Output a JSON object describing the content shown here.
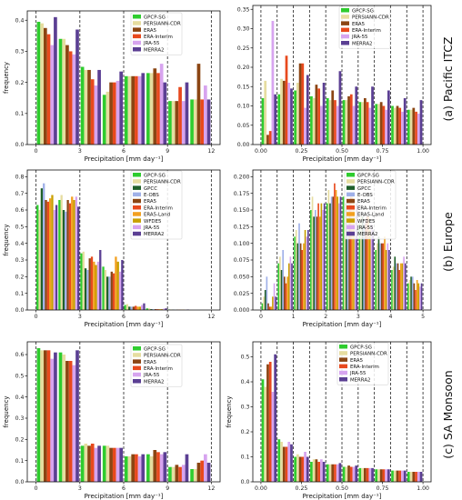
{
  "colors": {
    "GPCP-SG": "#2ecc2e",
    "PERSIANN-CDR": "#e6dda0",
    "GPCC": "#1f5f2a",
    "E-OBS": "#9fb0e8",
    "ERA5": "#8b4513",
    "ERA-Interim": "#e8491d",
    "ERA5-Land": "#f2a020",
    "WFDE5": "#c9a000",
    "JRA-55": "#d7a4ef",
    "MERRA2": "#5b3f93"
  },
  "row_labels": [
    "(a) Pacific ITCZ",
    "(b) Europe",
    "(c) SA Monsoon"
  ],
  "chart_data": [
    {
      "id": "a-left",
      "type": "bar",
      "xlabel": "Precipitation [mm day⁻¹]",
      "ylabel": "frequency",
      "xlim": [
        -0.6,
        12.6
      ],
      "ylim": [
        0,
        0.43
      ],
      "xticks": [
        0,
        3,
        6,
        9,
        12
      ],
      "xtick_labels": [
        "0",
        "3",
        "6",
        "9",
        "12"
      ],
      "yticks": [
        0,
        0.1,
        0.2,
        0.3,
        0.4
      ],
      "ytick_labels": [
        "0.0",
        "0.1",
        "0.2",
        "0.3",
        "0.4"
      ],
      "bin_width": 1.5,
      "group_frac": 0.92,
      "bin_starts": [
        0,
        1.5,
        3,
        4.5,
        6,
        7.5,
        9,
        10.5
      ],
      "vlines": [
        0,
        3,
        6,
        9,
        12
      ],
      "series": [
        {
          "name": "GPCP-SG",
          "values": [
            0.395,
            0.34,
            0.25,
            0.16,
            0.22,
            0.23,
            0.14,
            0.145
          ]
        },
        {
          "name": "PERSIANN-CDR",
          "values": [
            0.39,
            0.34,
            0.24,
            0.17,
            0.22,
            0.23,
            0.14,
            0.145
          ]
        },
        {
          "name": "ERA5",
          "values": [
            0.375,
            0.32,
            0.24,
            0.2,
            0.22,
            0.245,
            0.14,
            0.26
          ]
        },
        {
          "name": "ERA-Interim",
          "values": [
            0.355,
            0.3,
            0.21,
            0.2,
            0.22,
            0.23,
            0.185,
            0.145
          ]
        },
        {
          "name": "JRA-55",
          "values": [
            0.32,
            0.29,
            0.19,
            0.205,
            0.22,
            0.26,
            0.14,
            0.19
          ]
        },
        {
          "name": "MERRA2",
          "values": [
            0.41,
            0.37,
            0.24,
            0.235,
            0.23,
            0.2,
            0.2,
            0.145
          ]
        }
      ]
    },
    {
      "id": "a-right",
      "type": "bar",
      "xlabel": "Precipitation [mm day⁻¹]",
      "ylabel": "",
      "xlim": [
        -0.05,
        1.05
      ],
      "ylim": [
        0,
        0.36
      ],
      "xticks": [
        0,
        0.25,
        0.5,
        0.75,
        1.0
      ],
      "xtick_labels": [
        "0.00",
        "0.25",
        "0.50",
        "0.75",
        "1.00"
      ],
      "yticks": [
        0,
        0.05,
        0.1,
        0.15,
        0.2,
        0.25,
        0.3,
        0.35
      ],
      "ytick_labels": [
        "0.00",
        "0.05",
        "0.10",
        "0.15",
        "0.20",
        "0.25",
        "0.30",
        "0.35"
      ],
      "bin_width": 0.1,
      "group_frac": 0.92,
      "bin_starts": [
        0,
        0.1,
        0.2,
        0.3,
        0.4,
        0.5,
        0.6,
        0.7,
        0.8,
        0.9
      ],
      "vlines": [
        0,
        0.1,
        0.2,
        0.3,
        0.4,
        0.5,
        0.6,
        0.7,
        0.8,
        0.9,
        1.0
      ],
      "series": [
        {
          "name": "GPCP-SG",
          "values": [
            0.12,
            0.13,
            0.14,
            0.125,
            0.12,
            0.115,
            0.11,
            0.105,
            0.1,
            0.09
          ]
        },
        {
          "name": "PERSIANN-CDR",
          "values": [
            0.165,
            0.17,
            0.16,
            0.12,
            0.115,
            0.115,
            0.11,
            0.105,
            0.095,
            0.09
          ]
        },
        {
          "name": "ERA5",
          "values": [
            0.025,
            0.165,
            0.21,
            0.155,
            0.14,
            0.125,
            0.12,
            0.11,
            0.1,
            0.095
          ]
        },
        {
          "name": "ERA-Interim",
          "values": [
            0.035,
            0.23,
            0.21,
            0.145,
            0.115,
            0.13,
            0.11,
            0.1,
            0.095,
            0.085
          ]
        },
        {
          "name": "JRA-55",
          "values": [
            0.32,
            0.16,
            0.095,
            0.1,
            0.1,
            0.1,
            0.095,
            0.09,
            0.085,
            0.08
          ]
        },
        {
          "name": "MERRA2",
          "values": [
            0.13,
            0.145,
            0.18,
            0.16,
            0.19,
            0.15,
            0.15,
            0.14,
            0.12,
            0.115
          ]
        }
      ]
    },
    {
      "id": "b-left",
      "type": "bar",
      "xlabel": "Precipitation [mm day⁻¹]",
      "ylabel": "frequency",
      "xlim": [
        -0.6,
        12.6
      ],
      "ylim": [
        0,
        0.84
      ],
      "xticks": [
        0,
        3,
        6,
        9,
        12
      ],
      "xtick_labels": [
        "0",
        "3",
        "6",
        "9",
        "12"
      ],
      "yticks": [
        0,
        0.1,
        0.2,
        0.3,
        0.4,
        0.5,
        0.6,
        0.7,
        0.8
      ],
      "ytick_labels": [
        "0.0",
        "0.1",
        "0.2",
        "0.3",
        "0.4",
        "0.5",
        "0.6",
        "0.7",
        "0.8"
      ],
      "bin_width": 1.5,
      "group_frac": 0.96,
      "bin_starts": [
        0,
        1.5,
        3,
        4.5,
        6,
        7.5,
        9,
        10.5
      ],
      "vlines": [
        0,
        3,
        6,
        9,
        12
      ],
      "series": [
        {
          "name": "GPCP-SG",
          "values": [
            0.63,
            0.66,
            0.34,
            0.26,
            0.03,
            0.01,
            0.003,
            0.0
          ]
        },
        {
          "name": "PERSIANN-CDR",
          "values": [
            0.6,
            0.69,
            0.35,
            0.24,
            0.035,
            0.01,
            0.003,
            0.0
          ]
        },
        {
          "name": "GPCC",
          "values": [
            0.73,
            0.6,
            0.25,
            0.2,
            0.02,
            0.005,
            0.002,
            0.0
          ]
        },
        {
          "name": "E-OBS",
          "values": [
            0.76,
            0.59,
            0.24,
            0.2,
            0.02,
            0.005,
            0.002,
            0.0
          ]
        },
        {
          "name": "ERA5",
          "values": [
            0.66,
            0.66,
            0.31,
            0.23,
            0.02,
            0.005,
            0.002,
            0.0
          ]
        },
        {
          "name": "ERA-Interim",
          "values": [
            0.65,
            0.64,
            0.32,
            0.22,
            0.025,
            0.005,
            0.002,
            0.0
          ]
        },
        {
          "name": "ERA5-Land",
          "values": [
            0.67,
            0.68,
            0.29,
            0.32,
            0.02,
            0.005,
            0.002,
            0.0
          ]
        },
        {
          "name": "WFDE5",
          "values": [
            0.69,
            0.66,
            0.27,
            0.29,
            0.02,
            0.005,
            0.002,
            0.0
          ]
        },
        {
          "name": "JRA-55",
          "values": [
            0.6,
            0.68,
            0.29,
            0.23,
            0.03,
            0.008,
            0.002,
            0.0
          ]
        },
        {
          "name": "MERRA2",
          "values": [
            0.63,
            0.62,
            0.36,
            0.3,
            0.04,
            0.01,
            0.003,
            0.0
          ]
        }
      ]
    },
    {
      "id": "b-right",
      "type": "bar",
      "xlabel": "Precipitation [mm day⁻¹]",
      "ylabel": "",
      "xlim": [
        -0.25,
        5.25
      ],
      "ylim": [
        0,
        0.21
      ],
      "xticks": [
        0,
        1,
        2,
        3,
        4,
        5
      ],
      "xtick_labels": [
        "0",
        "1",
        "2",
        "3",
        "4",
        "5"
      ],
      "yticks": [
        0,
        0.025,
        0.05,
        0.075,
        0.1,
        0.125,
        0.15,
        0.175,
        0.2
      ],
      "ytick_labels": [
        "0.000",
        "0.025",
        "0.050",
        "0.075",
        "0.100",
        "0.125",
        "0.150",
        "0.175",
        "0.200"
      ],
      "bin_width": 0.5,
      "group_frac": 0.92,
      "bin_starts": [
        0,
        0.5,
        1,
        1.5,
        2,
        2.5,
        3,
        3.5,
        4,
        4.5
      ],
      "vlines": [
        0,
        0.5,
        1,
        1.5,
        2,
        2.5,
        3,
        3.5,
        4,
        4.5,
        5
      ],
      "series": [
        {
          "name": "GPCP-SG",
          "values": [
            0.01,
            0.07,
            0.11,
            0.15,
            0.16,
            0.17,
            0.13,
            0.09,
            0.06,
            0.04
          ]
        },
        {
          "name": "PERSIANN-CDR",
          "values": [
            0.02,
            0.08,
            0.12,
            0.17,
            0.18,
            0.16,
            0.14,
            0.1,
            0.065,
            0.045
          ]
        },
        {
          "name": "GPCC",
          "values": [
            0.03,
            0.06,
            0.1,
            0.14,
            0.16,
            0.16,
            0.14,
            0.11,
            0.08,
            0.05
          ]
        },
        {
          "name": "E-OBS",
          "values": [
            0.05,
            0.09,
            0.13,
            0.15,
            0.17,
            0.16,
            0.13,
            0.1,
            0.07,
            0.05
          ]
        },
        {
          "name": "ERA5",
          "values": [
            0.01,
            0.05,
            0.1,
            0.14,
            0.17,
            0.16,
            0.13,
            0.1,
            0.07,
            0.04
          ]
        },
        {
          "name": "ERA-Interim",
          "values": [
            0.005,
            0.04,
            0.09,
            0.16,
            0.19,
            0.17,
            0.14,
            0.1,
            0.06,
            0.03
          ]
        },
        {
          "name": "ERA5-Land",
          "values": [
            0.005,
            0.05,
            0.1,
            0.14,
            0.18,
            0.17,
            0.14,
            0.11,
            0.07,
            0.045
          ]
        },
        {
          "name": "WFDE5",
          "values": [
            0.02,
            0.07,
            0.12,
            0.16,
            0.17,
            0.16,
            0.12,
            0.09,
            0.07,
            0.04
          ]
        },
        {
          "name": "JRA-55",
          "values": [
            0.04,
            0.08,
            0.11,
            0.15,
            0.16,
            0.14,
            0.13,
            0.1,
            0.08,
            0.035
          ]
        },
        {
          "name": "MERRA2",
          "values": [
            0.02,
            0.07,
            0.12,
            0.16,
            0.17,
            0.16,
            0.12,
            0.09,
            0.07,
            0.04
          ]
        }
      ]
    },
    {
      "id": "c-left",
      "type": "bar",
      "xlabel": "Precipitation [mm day⁻¹]",
      "ylabel": "frequency",
      "xlim": [
        -0.6,
        12.6
      ],
      "ylim": [
        0,
        0.66
      ],
      "xticks": [
        0,
        3,
        6,
        9,
        12
      ],
      "xtick_labels": [
        "0",
        "3",
        "6",
        "9",
        "12"
      ],
      "yticks": [
        0,
        0.1,
        0.2,
        0.3,
        0.4,
        0.5,
        0.6
      ],
      "ytick_labels": [
        "0.0",
        "0.1",
        "0.2",
        "0.3",
        "0.4",
        "0.5",
        "0.6"
      ],
      "bin_width": 1.5,
      "group_frac": 0.92,
      "bin_starts": [
        0,
        1.5,
        3,
        4.5,
        6,
        7.5,
        9,
        10.5
      ],
      "vlines": [
        0,
        3,
        6,
        9,
        12
      ],
      "series": [
        {
          "name": "GPCP-SG",
          "values": [
            0.63,
            0.61,
            0.17,
            0.17,
            0.12,
            0.13,
            0.07,
            0.06
          ]
        },
        {
          "name": "PERSIANN-CDR",
          "values": [
            0.62,
            0.6,
            0.18,
            0.17,
            0.12,
            0.12,
            0.07,
            0.06
          ]
        },
        {
          "name": "ERA5",
          "values": [
            0.62,
            0.57,
            0.17,
            0.16,
            0.13,
            0.15,
            0.08,
            0.09
          ]
        },
        {
          "name": "ERA-Interim",
          "values": [
            0.62,
            0.57,
            0.18,
            0.16,
            0.13,
            0.14,
            0.07,
            0.1
          ]
        },
        {
          "name": "JRA-55",
          "values": [
            0.58,
            0.55,
            0.16,
            0.16,
            0.12,
            0.13,
            0.08,
            0.13
          ]
        },
        {
          "name": "MERRA2",
          "values": [
            0.61,
            0.62,
            0.17,
            0.16,
            0.13,
            0.14,
            0.13,
            0.09
          ]
        }
      ]
    },
    {
      "id": "c-right",
      "type": "bar",
      "xlabel": "Precipitation [mm day⁻¹]",
      "ylabel": "frequency",
      "xlim": [
        -0.05,
        1.05
      ],
      "ylim": [
        0,
        0.56
      ],
      "xticks": [
        0,
        0.25,
        0.5,
        0.75,
        1.0
      ],
      "xtick_labels": [
        "0.00",
        "0.25",
        "0.50",
        "0.75",
        "1.00"
      ],
      "yticks": [
        0,
        0.1,
        0.2,
        0.3,
        0.4,
        0.5
      ],
      "ytick_labels": [
        "0.0",
        "0.1",
        "0.2",
        "0.3",
        "0.4",
        "0.5"
      ],
      "bin_width": 0.1,
      "group_frac": 0.92,
      "bin_starts": [
        0,
        0.1,
        0.2,
        0.3,
        0.4,
        0.5,
        0.6,
        0.7,
        0.8,
        0.9
      ],
      "vlines": [
        0,
        0.1,
        0.2,
        0.3,
        0.4,
        0.5,
        0.6,
        0.7,
        0.8,
        0.9,
        1.0
      ],
      "series": [
        {
          "name": "GPCP-SG",
          "values": [
            0.41,
            0.17,
            0.1,
            0.08,
            0.07,
            0.06,
            0.055,
            0.05,
            0.045,
            0.04
          ]
        },
        {
          "name": "PERSIANN-CDR",
          "values": [
            0.38,
            0.16,
            0.11,
            0.09,
            0.07,
            0.06,
            0.055,
            0.05,
            0.045,
            0.04
          ]
        },
        {
          "name": "ERA5",
          "values": [
            0.47,
            0.14,
            0.1,
            0.09,
            0.07,
            0.065,
            0.055,
            0.05,
            0.045,
            0.04
          ]
        },
        {
          "name": "ERA-Interim",
          "values": [
            0.48,
            0.14,
            0.1,
            0.08,
            0.07,
            0.06,
            0.055,
            0.05,
            0.045,
            0.04
          ]
        },
        {
          "name": "JRA-55",
          "values": [
            0.36,
            0.16,
            0.12,
            0.09,
            0.07,
            0.06,
            0.055,
            0.05,
            0.045,
            0.04
          ]
        },
        {
          "name": "MERRA2",
          "values": [
            0.51,
            0.15,
            0.1,
            0.08,
            0.075,
            0.065,
            0.055,
            0.05,
            0.045,
            0.04
          ]
        }
      ]
    }
  ]
}
